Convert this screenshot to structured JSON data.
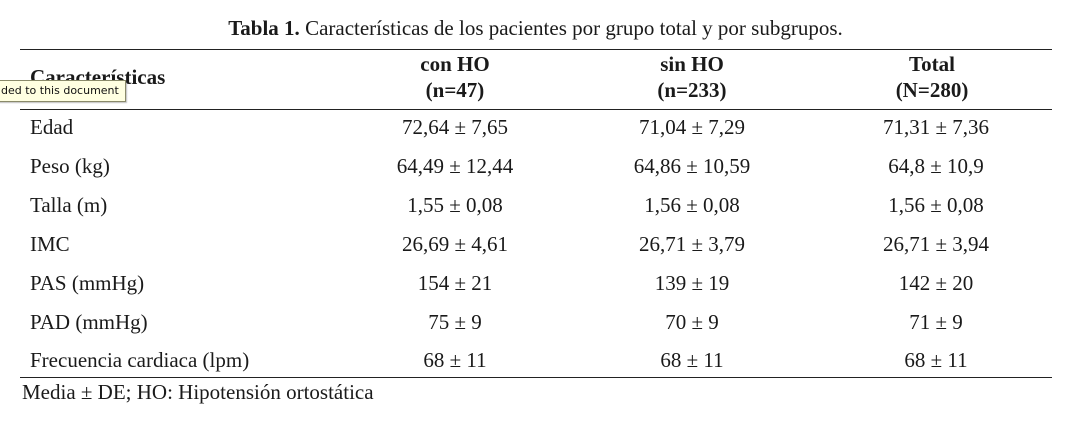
{
  "caption": {
    "bold": "Tabla 1.",
    "text": " Características de los pacientes por grupo total y por subgrupos."
  },
  "tooltip": "ded to this document",
  "table": {
    "header_label": "Características",
    "columns": [
      {
        "line1": "con HO",
        "line2": "(n=47)"
      },
      {
        "line1": "sin HO",
        "line2": "(n=233)"
      },
      {
        "line1": "Total",
        "line2": "(N=280)"
      }
    ],
    "rows": [
      {
        "label": "Edad",
        "values": [
          "72,64 ± 7,65",
          "71,04 ± 7,29",
          "71,31 ± 7,36"
        ]
      },
      {
        "label": "Peso (kg)",
        "values": [
          "64,49 ± 12,44",
          "64,86 ± 10,59",
          "64,8 ± 10,9"
        ]
      },
      {
        "label": "Talla (m)",
        "values": [
          "1,55 ± 0,08",
          "1,56 ± 0,08",
          "1,56 ± 0,08"
        ]
      },
      {
        "label": "IMC",
        "values": [
          "26,69 ± 4,61",
          "26,71 ± 3,79",
          "26,71 ± 3,94"
        ]
      },
      {
        "label": "PAS (mmHg)",
        "values": [
          "154 ± 21",
          "139 ± 19",
          "142 ± 20"
        ]
      },
      {
        "label": "PAD (mmHg)",
        "values": [
          "75 ± 9",
          "70 ± 9",
          "71 ± 9"
        ]
      },
      {
        "label": "Frecuencia cardiaca (lpm)",
        "values": [
          "68 ± 11",
          "68 ± 11",
          "68 ± 11"
        ]
      }
    ]
  },
  "footnote": "Media ± DE; HO: Hipotensión ortostática"
}
